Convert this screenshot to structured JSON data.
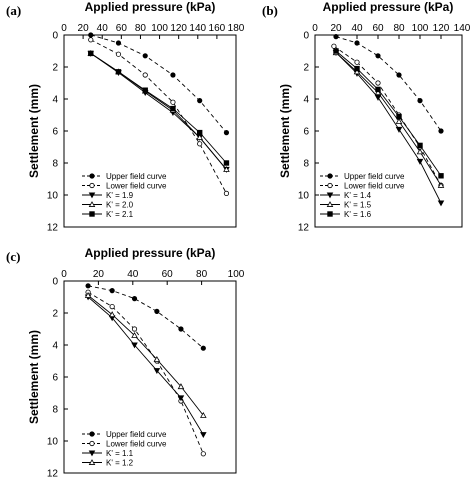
{
  "chart_data": [
    {
      "panel": "(a)",
      "type": "line",
      "title": "Applied pressure (kPa)",
      "xlabel": "Applied pressure (kPa)",
      "ylabel": "Settlement (mm)",
      "xlim": [
        0,
        180
      ],
      "ylim": [
        0,
        12
      ],
      "xticks": [
        0,
        20,
        40,
        60,
        80,
        100,
        120,
        140,
        160,
        180
      ],
      "yticks": [
        0,
        2,
        4,
        6,
        8,
        10,
        12
      ],
      "legend_position": "bottom-left",
      "series": [
        {
          "name": "Upper field curve",
          "style": "dashed",
          "marker": "filled-circle",
          "x": [
            28,
            57,
            85,
            114,
            142,
            170
          ],
          "y": [
            0.0,
            0.5,
            1.3,
            2.5,
            4.1,
            6.1
          ]
        },
        {
          "name": "Lower field curve",
          "style": "dashed",
          "marker": "open-circle",
          "x": [
            28,
            57,
            85,
            114,
            142,
            170
          ],
          "y": [
            0.3,
            1.2,
            2.5,
            4.2,
            6.8,
            9.9
          ]
        },
        {
          "name": "K' = 1.9",
          "style": "solid",
          "marker": "filled-triangle-down",
          "x": [
            28,
            57,
            85,
            114,
            142,
            170
          ],
          "y": [
            1.15,
            2.35,
            3.6,
            4.85,
            6.4,
            8.4
          ]
        },
        {
          "name": "K' = 2.0",
          "style": "solid",
          "marker": "open-triangle-up",
          "x": [
            28,
            57,
            85,
            114,
            142,
            170
          ],
          "y": [
            1.15,
            2.3,
            3.5,
            4.7,
            6.4,
            8.4
          ]
        },
        {
          "name": "K' = 2.1",
          "style": "solid",
          "marker": "filled-square",
          "x": [
            28,
            57,
            85,
            114,
            142,
            170
          ],
          "y": [
            1.15,
            2.3,
            3.45,
            4.6,
            6.1,
            8.0
          ]
        }
      ]
    },
    {
      "panel": "(b)",
      "type": "line",
      "title": "Applied pressure (kPa)",
      "xlabel": "Applied pressure (kPa)",
      "ylabel": "Settlement (mm)",
      "xlim": [
        0,
        140
      ],
      "ylim": [
        0,
        12
      ],
      "xticks": [
        0,
        20,
        40,
        60,
        80,
        100,
        120,
        140
      ],
      "yticks": [
        0,
        2,
        4,
        6,
        8,
        10,
        12
      ],
      "legend_position": "bottom-left",
      "series": [
        {
          "name": "Upper field curve",
          "style": "dashed",
          "marker": "filled-circle",
          "x": [
            20,
            40,
            60,
            80,
            100,
            120
          ],
          "y": [
            0.1,
            0.5,
            1.3,
            2.5,
            4.1,
            6.0
          ]
        },
        {
          "name": "Lower field curve",
          "style": "dashed",
          "marker": "open-circle",
          "x": [
            18,
            40,
            60,
            80,
            100,
            120
          ],
          "y": [
            0.7,
            1.7,
            3.0,
            5.0,
            7.0,
            9.4
          ]
        },
        {
          "name": "K' = 1.4",
          "style": "solid",
          "marker": "filled-triangle-down",
          "x": [
            20,
            40,
            60,
            80,
            100,
            120
          ],
          "y": [
            1.1,
            2.4,
            3.9,
            5.9,
            7.9,
            10.5
          ]
        },
        {
          "name": "K' = 1.5",
          "style": "solid",
          "marker": "open-triangle-up",
          "x": [
            20,
            40,
            60,
            80,
            100,
            120
          ],
          "y": [
            1.1,
            2.3,
            3.6,
            5.4,
            7.3,
            9.4
          ]
        },
        {
          "name": "K' = 1.6",
          "style": "solid",
          "marker": "filled-square",
          "x": [
            20,
            40,
            60,
            80,
            100,
            120
          ],
          "y": [
            1.0,
            2.1,
            3.4,
            5.1,
            6.9,
            8.8
          ]
        }
      ]
    },
    {
      "panel": "(c)",
      "type": "line",
      "title": "Applied pressure (kPa)",
      "xlabel": "Applied pressure (kPa)",
      "ylabel": "Settlement (mm)",
      "xlim": [
        0,
        100
      ],
      "ylim": [
        0,
        12
      ],
      "xticks": [
        0,
        20,
        40,
        60,
        80,
        100
      ],
      "yticks": [
        0,
        2,
        4,
        6,
        8,
        10,
        12
      ],
      "legend_position": "bottom-left",
      "series": [
        {
          "name": "Upper field curve",
          "style": "dashed",
          "marker": "filled-circle",
          "x": [
            14,
            28,
            41,
            54,
            68,
            81
          ],
          "y": [
            0.3,
            0.6,
            1.1,
            1.9,
            3.0,
            4.2
          ]
        },
        {
          "name": "Lower field curve",
          "style": "dashed",
          "marker": "open-circle",
          "x": [
            14,
            28,
            41,
            54,
            68,
            81
          ],
          "y": [
            0.7,
            1.6,
            3.0,
            5.0,
            7.5,
            10.8
          ]
        },
        {
          "name": "K' = 1.1",
          "style": "solid",
          "marker": "filled-triangle-down",
          "x": [
            14,
            28,
            41,
            54,
            68,
            81
          ],
          "y": [
            1.0,
            2.3,
            4.0,
            5.6,
            7.3,
            9.6
          ]
        },
        {
          "name": "K' = 1.2",
          "style": "solid",
          "marker": "open-triangle-up",
          "x": [
            14,
            28,
            41,
            54,
            68,
            81
          ],
          "y": [
            0.9,
            2.1,
            3.4,
            4.9,
            6.6,
            8.4
          ]
        }
      ]
    }
  ]
}
